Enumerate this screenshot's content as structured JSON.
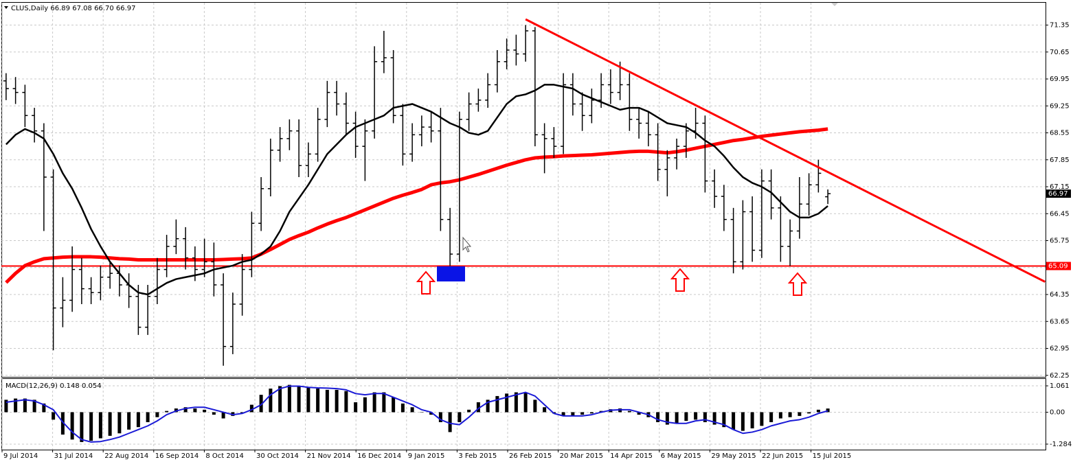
{
  "chart_data": [
    {
      "type": "ohlc",
      "title": "CLUS,Daily",
      "last_labels": [
        "66.89",
        "67.08",
        "66.70",
        "66.97"
      ],
      "xticklabels": [
        "9 Jul 2014",
        "31 Jul 2014",
        "22 Aug 2014",
        "16 Sep 2014",
        "8 Oct 2014",
        "30 Oct 2014",
        "21 Nov 2014",
        "16 Dec 2014",
        "9 Jan 2015",
        "3 Feb 2015",
        "26 Feb 2015",
        "20 Mar 2015",
        "14 Apr 2015",
        "6 May 2015",
        "29 May 2015",
        "22 Jun 2015",
        "15 Jul 2015"
      ],
      "color": "#000000",
      "open": [
        69.9,
        69.7,
        69.6,
        69.0,
        68.6,
        67.4,
        64.0,
        64.2,
        65.0,
        64.5,
        64.4,
        64.8,
        64.9,
        64.6,
        64.3,
        63.5,
        64.3,
        65.0,
        65.6,
        65.8,
        65.3,
        65.0,
        65.2,
        64.6,
        63.0,
        64.1,
        65.0,
        66.2,
        67.1,
        68.1,
        68.4,
        68.6,
        67.7,
        68.0,
        68.9,
        69.6,
        69.3,
        68.8,
        68.2,
        68.6,
        70.4,
        70.5,
        69.0,
        68.0,
        68.5,
        68.7,
        68.6,
        66.3,
        65.4,
        68.9,
        69.3,
        69.4,
        69.8,
        70.4,
        70.7,
        70.6,
        71.2,
        68.5,
        68.4,
        68.2,
        69.8,
        69.3,
        69.0,
        69.4,
        69.8,
        69.6,
        69.8,
        68.9,
        68.8,
        68.5,
        67.6,
        67.9,
        68.2,
        68.6,
        68.8,
        67.3,
        66.9,
        66.3,
        65.2,
        66.5,
        65.5,
        67.3,
        66.6,
        65.6,
        66.0,
        66.7,
        67.2,
        66.89
      ],
      "high": [
        70.1,
        70.0,
        69.8,
        69.2,
        68.8,
        67.6,
        64.8,
        65.6,
        65.3,
        64.8,
        65.1,
        65.2,
        65.1,
        64.9,
        64.6,
        64.6,
        65.3,
        65.9,
        66.3,
        66.1,
        65.6,
        65.8,
        65.7,
        64.9,
        64.4,
        65.4,
        66.5,
        67.4,
        68.4,
        68.7,
        68.9,
        68.9,
        68.3,
        69.2,
        69.9,
        69.9,
        69.6,
        69.1,
        68.9,
        70.8,
        71.2,
        70.7,
        69.3,
        68.8,
        69.0,
        69.1,
        69.2,
        66.6,
        69.1,
        69.6,
        69.7,
        70.1,
        70.7,
        71.0,
        71.1,
        71.35,
        71.3,
        68.8,
        68.7,
        70.1,
        70.1,
        69.6,
        69.7,
        70.1,
        70.2,
        70.4,
        70.1,
        69.2,
        69.1,
        68.8,
        68.1,
        68.4,
        68.8,
        69.2,
        69.0,
        67.6,
        67.2,
        66.6,
        66.8,
        66.9,
        67.6,
        67.6,
        66.9,
        66.3,
        67.4,
        67.5,
        67.85,
        67.08
      ],
      "low": [
        69.4,
        69.3,
        68.7,
        68.3,
        66.0,
        62.9,
        63.5,
        63.9,
        64.1,
        64.1,
        64.2,
        64.5,
        64.3,
        64.0,
        63.3,
        63.3,
        64.1,
        64.8,
        65.4,
        65.0,
        64.7,
        64.8,
        64.3,
        62.5,
        62.8,
        63.8,
        64.8,
        66.0,
        66.9,
        67.8,
        68.1,
        67.4,
        67.4,
        67.8,
        68.7,
        69.0,
        68.5,
        67.9,
        67.3,
        68.4,
        70.1,
        68.8,
        67.7,
        67.8,
        68.2,
        68.3,
        66.0,
        65.09,
        65.2,
        68.6,
        69.1,
        69.2,
        69.6,
        70.2,
        70.3,
        70.4,
        68.2,
        67.5,
        67.9,
        68.0,
        69.0,
        68.6,
        68.8,
        69.2,
        69.3,
        69.4,
        68.6,
        68.4,
        68.2,
        67.3,
        66.9,
        67.6,
        67.9,
        68.4,
        67.0,
        66.6,
        66.0,
        64.9,
        65.0,
        65.2,
        65.3,
        66.3,
        65.2,
        65.09,
        65.8,
        66.4,
        67.0,
        66.7
      ],
      "close": [
        69.7,
        69.6,
        69.0,
        68.6,
        67.4,
        64.0,
        64.2,
        65.0,
        64.5,
        64.4,
        64.8,
        64.9,
        64.6,
        64.3,
        63.5,
        64.3,
        65.0,
        65.6,
        65.8,
        65.3,
        65.0,
        65.2,
        64.6,
        63.0,
        64.1,
        65.0,
        66.2,
        67.1,
        68.1,
        68.4,
        68.6,
        67.7,
        68.0,
        68.9,
        69.6,
        69.3,
        68.8,
        68.2,
        68.6,
        70.4,
        70.5,
        69.0,
        68.0,
        68.5,
        68.7,
        68.6,
        66.3,
        65.4,
        68.9,
        69.3,
        69.4,
        69.8,
        70.4,
        70.7,
        70.6,
        71.2,
        68.5,
        68.4,
        68.2,
        69.8,
        69.3,
        69.0,
        69.4,
        69.8,
        69.6,
        69.8,
        68.9,
        68.8,
        68.5,
        67.6,
        67.9,
        68.2,
        68.6,
        68.8,
        67.3,
        66.9,
        66.3,
        65.2,
        66.5,
        65.5,
        67.3,
        66.6,
        65.6,
        66.0,
        66.7,
        67.2,
        67.5,
        66.97
      ],
      "lines": [
        {
          "color": "#ff0000",
          "values": [
            64.66,
            64.9,
            65.1,
            65.2,
            65.28,
            65.3,
            65.32,
            65.33,
            65.33,
            65.33,
            65.32,
            65.3,
            65.28,
            65.27,
            65.25,
            65.25,
            65.25,
            65.25,
            65.25,
            65.25,
            65.25,
            65.25,
            65.25,
            65.26,
            65.27,
            65.28,
            65.3,
            65.4,
            65.52,
            65.65,
            65.78,
            65.88,
            65.97,
            66.08,
            66.18,
            66.27,
            66.35,
            66.45,
            66.55,
            66.65,
            66.75,
            66.85,
            66.93,
            67.0,
            67.08,
            67.2,
            67.25,
            67.28,
            67.33,
            67.4,
            67.47,
            67.55,
            67.63,
            67.71,
            67.78,
            67.85,
            67.9,
            67.92,
            67.93,
            67.95,
            67.96,
            67.97,
            67.98,
            68.0,
            68.02,
            68.04,
            68.06,
            68.07,
            68.07,
            68.05,
            68.03,
            68.06,
            68.1,
            68.15,
            68.2,
            68.25,
            68.3,
            68.35,
            68.38,
            68.42,
            68.46,
            68.49,
            68.52,
            68.55,
            68.58,
            68.6,
            68.62,
            68.65
          ]
        },
        {
          "color": "#000000",
          "values": [
            68.25,
            68.5,
            68.65,
            68.55,
            68.4,
            68.0,
            67.5,
            67.1,
            66.6,
            66.05,
            65.6,
            65.2,
            64.9,
            64.6,
            64.4,
            64.35,
            64.5,
            64.65,
            64.75,
            64.8,
            64.85,
            64.9,
            65.0,
            65.05,
            65.1,
            65.2,
            65.25,
            65.4,
            65.6,
            66.0,
            66.5,
            66.85,
            67.2,
            67.6,
            68.0,
            68.25,
            68.5,
            68.7,
            68.8,
            68.9,
            69.0,
            69.2,
            69.25,
            69.3,
            69.2,
            69.1,
            68.95,
            68.8,
            68.7,
            68.55,
            68.5,
            68.6,
            68.95,
            69.3,
            69.5,
            69.55,
            69.65,
            69.8,
            69.8,
            69.75,
            69.7,
            69.55,
            69.45,
            69.35,
            69.25,
            69.15,
            69.2,
            69.2,
            69.1,
            68.95,
            68.8,
            68.75,
            68.7,
            68.55,
            68.35,
            68.2,
            67.95,
            67.65,
            67.4,
            67.25,
            67.15,
            67.0,
            66.75,
            66.5,
            66.35,
            66.35,
            66.45,
            66.65
          ]
        }
      ],
      "hline": {
        "value": 65.09,
        "color": "#ff0000"
      },
      "trendline": {
        "x": [
          55,
          110
        ],
        "y": [
          71.5,
          64.68
        ],
        "color": "#ff0000"
      },
      "ylim": [
        62.21,
        71.93
      ],
      "yticks": [
        71.35,
        70.65,
        69.95,
        69.25,
        68.55,
        67.85,
        67.15,
        66.45,
        65.75,
        65.05,
        64.35,
        63.65,
        62.95,
        62.25
      ],
      "grid": true
    },
    {
      "type": "macd",
      "title": "MACD(12,26,9)",
      "histogram": {
        "color": "#000000",
        "values": [
          0.5,
          0.55,
          0.55,
          0.5,
          0.35,
          -0.3,
          -0.9,
          -1.1,
          -1.2,
          -1.15,
          -1.05,
          -0.95,
          -0.85,
          -0.7,
          -0.6,
          -0.4,
          -0.2,
          0.05,
          0.15,
          0.2,
          0.15,
          0.1,
          -0.1,
          -0.25,
          -0.15,
          -0.05,
          0.3,
          0.7,
          0.95,
          1.05,
          1.1,
          1.05,
          1.0,
          0.95,
          0.9,
          0.9,
          0.85,
          0.4,
          0.6,
          0.8,
          0.8,
          0.6,
          0.35,
          0.2,
          0,
          -0.1,
          -0.4,
          -0.8,
          -0.4,
          0.1,
          0.4,
          0.5,
          0.65,
          0.75,
          0.8,
          0.8,
          0.5,
          0.2,
          -0.05,
          -0.15,
          -0.15,
          -0.1,
          -0.05,
          0.05,
          0.12,
          0.15,
          0.05,
          -0.1,
          -0.2,
          -0.4,
          -0.5,
          -0.45,
          -0.35,
          -0.3,
          -0.4,
          -0.5,
          -0.6,
          -0.7,
          -0.75,
          -0.65,
          -0.55,
          -0.4,
          -0.25,
          -0.2,
          -0.15,
          -0.05,
          0.1,
          0.148
        ]
      },
      "signal": {
        "color": "#1a1ad6",
        "values": [
          0.4,
          0.45,
          0.5,
          0.45,
          0.3,
          0.1,
          -0.4,
          -0.8,
          -1.1,
          -1.2,
          -1.18,
          -1.1,
          -1.0,
          -0.85,
          -0.7,
          -0.55,
          -0.35,
          -0.1,
          0.05,
          0.15,
          0.2,
          0.2,
          0.1,
          0,
          -0.1,
          -0.05,
          0.1,
          0.3,
          0.7,
          0.95,
          1.05,
          1.05,
          1.0,
          0.98,
          0.97,
          0.95,
          0.9,
          0.75,
          0.7,
          0.75,
          0.75,
          0.6,
          0.45,
          0.3,
          0.1,
          0,
          -0.3,
          -0.45,
          -0.5,
          -0.2,
          0.15,
          0.4,
          0.5,
          0.6,
          0.7,
          0.8,
          0.65,
          0.3,
          -0.05,
          -0.15,
          -0.15,
          -0.15,
          -0.1,
          0,
          0.08,
          0.1,
          0.1,
          0,
          -0.1,
          -0.3,
          -0.4,
          -0.45,
          -0.45,
          -0.35,
          -0.3,
          -0.4,
          -0.5,
          -0.7,
          -0.85,
          -0.8,
          -0.7,
          -0.55,
          -0.45,
          -0.35,
          -0.3,
          -0.2,
          -0.05,
          0.054
        ]
      },
      "ylim": [
        -1.506,
        1.366
      ],
      "yticks": [
        1.061,
        {
          "value": 0,
          "label": "0.00"
        },
        -1.284
      ]
    }
  ]
}
